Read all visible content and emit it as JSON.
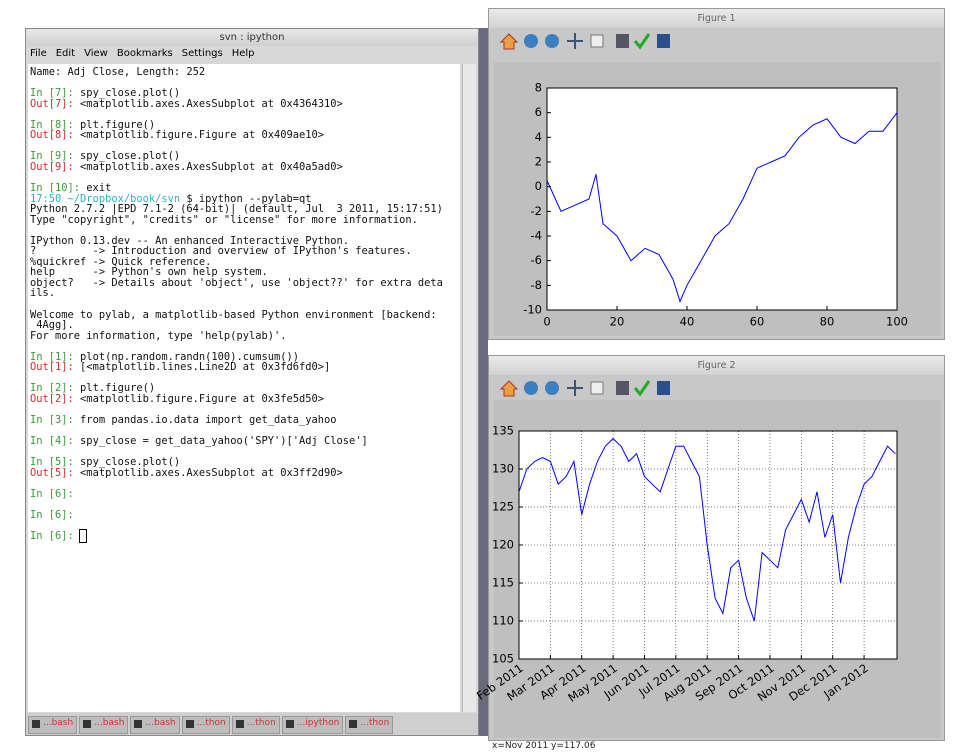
{
  "terminal": {
    "title": "svn : ipython",
    "menu": [
      "File",
      "Edit",
      "View",
      "Bookmarks",
      "Settings",
      "Help"
    ],
    "blocks": [
      [
        {
          "text": "Name: Adj Close, Length: 252"
        }
      ],
      [
        {
          "prompt": "In [7]:",
          "prompt_color": "#3a9a3a",
          "text": " spy_close.plot()"
        },
        {
          "prompt": "Out[7]:",
          "prompt_color": "#c83030",
          "text": " <matplotlib.axes.AxesSubplot at 0x4364310>"
        }
      ],
      [
        {
          "prompt": "In [8]:",
          "prompt_color": "#3a9a3a",
          "text": " plt.figure()"
        },
        {
          "prompt": "Out[8]:",
          "prompt_color": "#c83030",
          "text": " <matplotlib.figure.Figure at 0x409ae10>"
        }
      ],
      [
        {
          "prompt": "In [9]:",
          "prompt_color": "#3a9a3a",
          "text": " spy_close.plot()"
        },
        {
          "prompt": "Out[9]:",
          "prompt_color": "#c83030",
          "text": " <matplotlib.axes.AxesSubplot at 0x40a5ad0>"
        }
      ],
      [
        {
          "prompt": "In [10]:",
          "prompt_color": "#3a9a3a",
          "text": " exit"
        },
        {
          "prompt": "17:50 ~/Dropbox/book/svn",
          "prompt_color": "#30b0c8",
          "text": " $ ipython --pylab=qt"
        },
        {
          "text": "Python 2.7.2 |EPD 7.1-2 (64-bit)| (default, Jul  3 2011, 15:17:51)"
        },
        {
          "text": "Type \"copyright\", \"credits\" or \"license\" for more information."
        }
      ],
      [
        {
          "text": "IPython 0.13.dev -- An enhanced Interactive Python."
        },
        {
          "text": "?         -> Introduction and overview of IPython's features."
        },
        {
          "text": "%quickref -> Quick reference."
        },
        {
          "text": "help      -> Python's own help system."
        },
        {
          "text": "object?   -> Details about 'object', use 'object??' for extra deta"
        },
        {
          "text": "ils."
        }
      ],
      [
        {
          "text": "Welcome to pylab, a matplotlib-based Python environment [backend:"
        },
        {
          "text": " 4Agg]."
        },
        {
          "text": "For more information, type 'help(pylab)'."
        }
      ],
      [
        {
          "prompt": "In [1]:",
          "prompt_color": "#3a9a3a",
          "text": " plot(np.random.randn(100).cumsum())"
        },
        {
          "prompt": "Out[1]:",
          "prompt_color": "#c83030",
          "text": " [<matplotlib.lines.Line2D at 0x3fd6fd0>]"
        }
      ],
      [
        {
          "prompt": "In [2]:",
          "prompt_color": "#3a9a3a",
          "text": " plt.figure()"
        },
        {
          "prompt": "Out[2]:",
          "prompt_color": "#c83030",
          "text": " <matplotlib.figure.Figure at 0x3fe5d50>"
        }
      ],
      [
        {
          "prompt": "In [3]:",
          "prompt_color": "#3a9a3a",
          "text": " from pandas.io.data import get_data_yahoo"
        }
      ],
      [
        {
          "prompt": "In [4]:",
          "prompt_color": "#3a9a3a",
          "text": " spy_close = get_data_yahoo('SPY')['Adj Close']"
        }
      ],
      [
        {
          "prompt": "In [5]:",
          "prompt_color": "#3a9a3a",
          "text": " spy_close.plot()"
        },
        {
          "prompt": "Out[5]:",
          "prompt_color": "#c83030",
          "text": " <matplotlib.axes.AxesSubplot at 0x3ff2d90>"
        }
      ],
      [
        {
          "prompt": "In [6]:",
          "prompt_color": "#3a9a3a"
        }
      ],
      [
        {
          "prompt": "In [6]:",
          "prompt_color": "#3a9a3a"
        }
      ],
      [
        {
          "prompt": "In [6]:",
          "prompt_color": "#3a9a3a"
        }
      ]
    ]
  },
  "taskbar": [
    "...bash",
    "...bash",
    "...bash",
    "...thon",
    "...thon",
    "...ipython",
    "...thon"
  ],
  "figures": [
    "Figure 1",
    "Figure 2"
  ],
  "status": "x=Nov 2011 y=117.06",
  "chart_data": [
    {
      "type": "line",
      "color": "#0000ff",
      "x": [
        0,
        4,
        8,
        12,
        14,
        16,
        20,
        24,
        28,
        32,
        36,
        38,
        40,
        44,
        48,
        52,
        56,
        60,
        64,
        68,
        72,
        76,
        80,
        84,
        88,
        92,
        96,
        100
      ],
      "values": [
        0.5,
        -2,
        -1.5,
        -1,
        1,
        -3,
        -4,
        -6,
        -5,
        -5.5,
        -7.5,
        -9.3,
        -8,
        -6,
        -4,
        -3,
        -1,
        1.5,
        2,
        2.5,
        4,
        5,
        5.5,
        4,
        3.5,
        4.5,
        4.5,
        6
      ],
      "xlim": [
        0,
        100
      ],
      "xticks": [
        0,
        20,
        40,
        60,
        80,
        100
      ],
      "ylim": [
        -10,
        8
      ],
      "yticks": [
        -10,
        -8,
        -6,
        -4,
        -2,
        0,
        2,
        4,
        6,
        8
      ],
      "grid": false
    },
    {
      "type": "line",
      "color": "#0000ff",
      "x": [
        0,
        0.25,
        0.5,
        0.75,
        1,
        1.25,
        1.5,
        1.75,
        2,
        2.25,
        2.5,
        2.75,
        3,
        3.25,
        3.5,
        3.75,
        4,
        4.25,
        4.5,
        4.75,
        5,
        5.25,
        5.5,
        5.75,
        6,
        6.25,
        6.5,
        6.75,
        7,
        7.25,
        7.5,
        7.75,
        8,
        8.25,
        8.5,
        8.75,
        9,
        9.25,
        9.5,
        9.75,
        10,
        10.25,
        10.5,
        10.75,
        11,
        11.25,
        11.5,
        11.75,
        12
      ],
      "values": [
        127,
        130,
        131,
        131.5,
        131,
        128,
        129,
        131,
        124,
        128,
        131,
        133,
        134,
        133,
        131,
        132,
        129,
        128,
        127,
        130,
        133,
        133,
        131,
        129,
        120,
        113,
        111,
        117,
        118,
        113,
        110,
        119,
        118,
        117,
        122,
        124,
        126,
        123,
        127,
        121,
        124,
        115,
        121,
        125,
        128,
        129,
        131,
        133,
        132
      ],
      "xlim": [
        0,
        12.05
      ],
      "xticks": [
        {
          "value": 0,
          "label": "Feb 2011"
        },
        {
          "value": 1,
          "label": "Mar 2011"
        },
        {
          "value": 2,
          "label": "Apr 2011"
        },
        {
          "value": 3,
          "label": "May 2011"
        },
        {
          "value": 4,
          "label": "Jun 2011"
        },
        {
          "value": 5,
          "label": "Jul 2011"
        },
        {
          "value": 6,
          "label": "Aug 2011"
        },
        {
          "value": 7,
          "label": "Sep 2011"
        },
        {
          "value": 8,
          "label": "Oct 2011"
        },
        {
          "value": 9,
          "label": "Nov 2011"
        },
        {
          "value": 10,
          "label": "Dec 2011"
        },
        {
          "value": 11,
          "label": "Jan 2012"
        }
      ],
      "ylim": [
        105,
        135
      ],
      "yticks": [
        105,
        110,
        115,
        120,
        125,
        130,
        135
      ],
      "grid": true
    }
  ]
}
